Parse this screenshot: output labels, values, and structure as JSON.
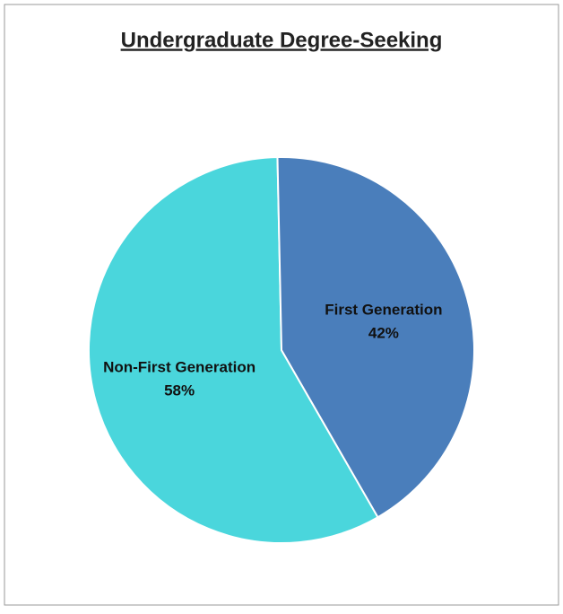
{
  "chart_data": {
    "type": "pie",
    "title": "Undergraduate Degree-Seeking",
    "categories": [
      "Non-First Generation",
      "First Generation"
    ],
    "values": [
      58,
      42
    ],
    "value_labels": [
      "58%",
      "42%"
    ],
    "colors": [
      "#4ad6dc",
      "#4a7ebb"
    ]
  }
}
